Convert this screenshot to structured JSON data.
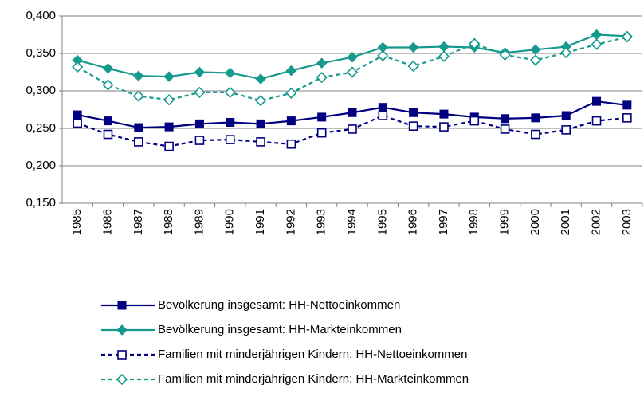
{
  "chart_data": {
    "type": "line",
    "categories": [
      "1985",
      "1986",
      "1987",
      "1988",
      "1989",
      "1990",
      "1991",
      "1992",
      "1993",
      "1994",
      "1995",
      "1996",
      "1997",
      "1998",
      "1999",
      "2000",
      "2001",
      "2002",
      "2003"
    ],
    "series": [
      {
        "name": "Bevölkerung insgesamt: HH-Nettoeinkommen",
        "color": "#000080",
        "line_style": "solid",
        "marker": "square",
        "marker_fill": true,
        "values": [
          0.268,
          0.26,
          0.251,
          0.252,
          0.256,
          0.258,
          0.256,
          0.26,
          0.265,
          0.271,
          0.278,
          0.271,
          0.269,
          0.265,
          0.263,
          0.264,
          0.267,
          0.286,
          0.281
        ]
      },
      {
        "name": "Bevölkerung insgesamt: HH-Markteinkommen",
        "color": "#169a8e",
        "line_style": "solid",
        "marker": "diamond",
        "marker_fill": true,
        "values": [
          0.341,
          0.33,
          0.32,
          0.319,
          0.325,
          0.324,
          0.316,
          0.327,
          0.337,
          0.345,
          0.358,
          0.358,
          0.359,
          0.358,
          0.351,
          0.355,
          0.359,
          0.375,
          0.373
        ]
      },
      {
        "name": "Familien mit minderjährigen Kindern: HH-Nettoeinkommen",
        "color": "#000080",
        "line_style": "dashed",
        "marker": "square",
        "marker_fill": false,
        "values": [
          0.257,
          0.242,
          0.232,
          0.226,
          0.234,
          0.235,
          0.232,
          0.229,
          0.244,
          0.249,
          0.267,
          0.253,
          0.252,
          0.26,
          0.249,
          0.242,
          0.248,
          0.26,
          0.264
        ]
      },
      {
        "name": "Familien mit minderjährigen Kindern: HH-Markteinkommen",
        "color": "#169a8e",
        "line_style": "dashed",
        "marker": "diamond",
        "marker_fill": false,
        "values": [
          0.332,
          0.308,
          0.293,
          0.288,
          0.298,
          0.298,
          0.287,
          0.297,
          0.318,
          0.325,
          0.347,
          0.333,
          0.346,
          0.363,
          0.348,
          0.341,
          0.351,
          0.362,
          0.372
        ]
      }
    ],
    "ylim": [
      0.15,
      0.4
    ],
    "yticks": [
      {
        "value": 0.15,
        "label": "0,150"
      },
      {
        "value": 0.2,
        "label": "0,200"
      },
      {
        "value": 0.25,
        "label": "0,250"
      },
      {
        "value": 0.3,
        "label": "0,300"
      },
      {
        "value": 0.35,
        "label": "0,350"
      },
      {
        "value": 0.4,
        "label": "0,400"
      }
    ],
    "grid": true,
    "legend": "bottom"
  }
}
